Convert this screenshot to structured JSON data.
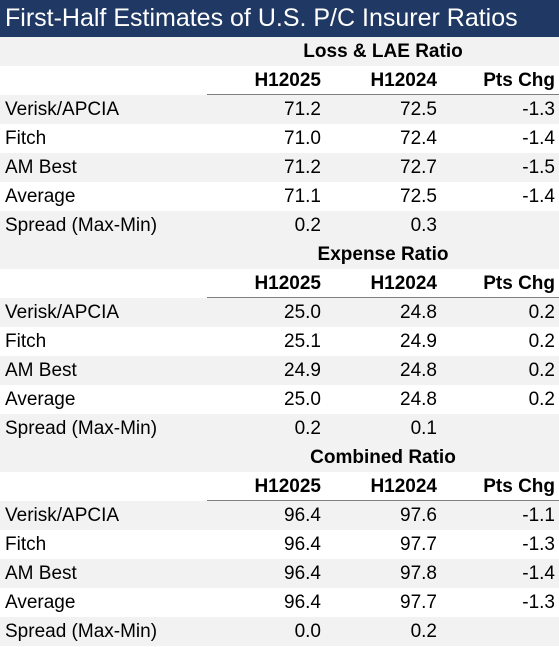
{
  "title": "First-Half Estimates of U.S. P/C Insurer Ratios",
  "columns": [
    "H12025",
    "H12024",
    "Pts Chg"
  ],
  "sections": [
    {
      "heading": "Loss & LAE Ratio",
      "rows": [
        {
          "label": "Verisk/APCIA",
          "a": "71.2",
          "b": "72.5",
          "c": "-1.3"
        },
        {
          "label": "Fitch",
          "a": "71.0",
          "b": "72.4",
          "c": "-1.4"
        },
        {
          "label": "AM Best",
          "a": "71.2",
          "b": "72.7",
          "c": "-1.5"
        },
        {
          "label": "Average",
          "a": "71.1",
          "b": "72.5",
          "c": "-1.4"
        },
        {
          "label": "Spread (Max-Min)",
          "a": "0.2",
          "b": "0.3",
          "c": ""
        }
      ]
    },
    {
      "heading": "Expense Ratio",
      "rows": [
        {
          "label": "Verisk/APCIA",
          "a": "25.0",
          "b": "24.8",
          "c": "0.2"
        },
        {
          "label": "Fitch",
          "a": "25.1",
          "b": "24.9",
          "c": "0.2"
        },
        {
          "label": "AM Best",
          "a": "24.9",
          "b": "24.8",
          "c": "0.2"
        },
        {
          "label": "Average",
          "a": "25.0",
          "b": "24.8",
          "c": "0.2"
        },
        {
          "label": "Spread (Max-Min)",
          "a": "0.2",
          "b": "0.1",
          "c": ""
        }
      ]
    },
    {
      "heading": "Combined Ratio",
      "rows": [
        {
          "label": "Verisk/APCIA",
          "a": "96.4",
          "b": "97.6",
          "c": "-1.1"
        },
        {
          "label": "Fitch",
          "a": "96.4",
          "b": "97.7",
          "c": "-1.3"
        },
        {
          "label": "AM Best",
          "a": "96.4",
          "b": "97.8",
          "c": "-1.4"
        },
        {
          "label": "Average",
          "a": "96.4",
          "b": "97.7",
          "c": "-1.3"
        },
        {
          "label": "Spread (Max-Min)",
          "a": "0.0",
          "b": "0.2",
          "c": ""
        }
      ]
    }
  ]
}
